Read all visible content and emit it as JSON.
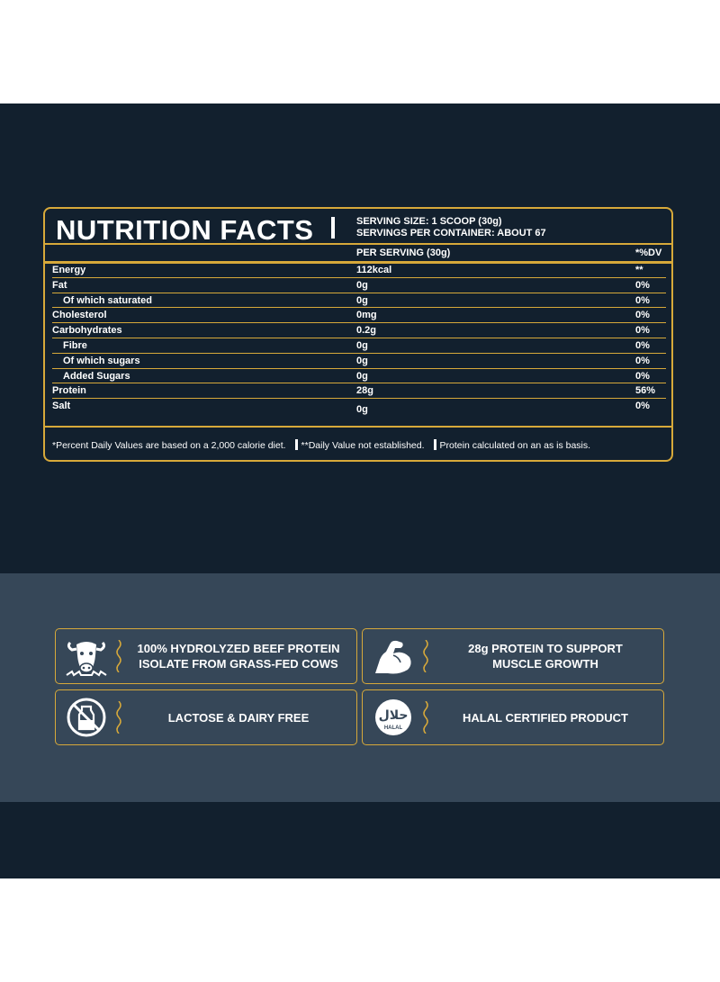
{
  "panel": {
    "title": "NUTRITION FACTS",
    "serving_size": "SERVING SIZE: 1 SCOOP (30g)",
    "servings_per_container": "SERVINGS PER CONTAINER: ABOUT 67",
    "col_per_serving": "PER SERVING (30g)",
    "col_dv": "*%DV",
    "rows": [
      {
        "name": "Energy",
        "value": "112kcal",
        "dv": "**"
      },
      {
        "name": "Fat",
        "value": "0g",
        "dv": "0%"
      },
      {
        "name": "Of which saturated",
        "value": "0g",
        "dv": "0%"
      },
      {
        "name": "Cholesterol",
        "value": "0mg",
        "dv": "0%"
      },
      {
        "name": "Carbohydrates",
        "value": "0.2g",
        "dv": "0%"
      },
      {
        "name": "Fibre",
        "value": "0g",
        "dv": "0%"
      },
      {
        "name": "Of which sugars",
        "value": "0g",
        "dv": "0%"
      },
      {
        "name": "Added Sugars",
        "value": "0g",
        "dv": "0%"
      },
      {
        "name": "Protein",
        "value": "28g",
        "dv": "56%"
      },
      {
        "name": "Salt",
        "value": "0g",
        "dv": "0%"
      }
    ],
    "footnotes": [
      "*Percent Daily Values are based on a 2,000 calorie diet.",
      "**Daily Value not established.",
      "Protein calculated on an as is basis."
    ]
  },
  "features": [
    {
      "icon": "cow-icon",
      "line1": "100% HYDROLYZED BEEF PROTEIN",
      "line2": "ISOLATE FROM GRASS-FED COWS"
    },
    {
      "icon": "flexed-arm-icon",
      "line1": "28g PROTEIN TO SUPPORT",
      "line2": "MUSCLE GROWTH"
    },
    {
      "icon": "no-milk-icon",
      "line1": "LACTOSE & DAIRY FREE",
      "line2": ""
    },
    {
      "icon": "halal-badge-icon",
      "line1": "HALAL CERTIFIED PRODUCT",
      "line2": "",
      "badge_word": "حلال",
      "badge_label": "HALAL"
    }
  ],
  "colors": {
    "navy": "#12202e",
    "slate": "#364758",
    "gold": "#d7a93a",
    "white": "#ffffff"
  }
}
